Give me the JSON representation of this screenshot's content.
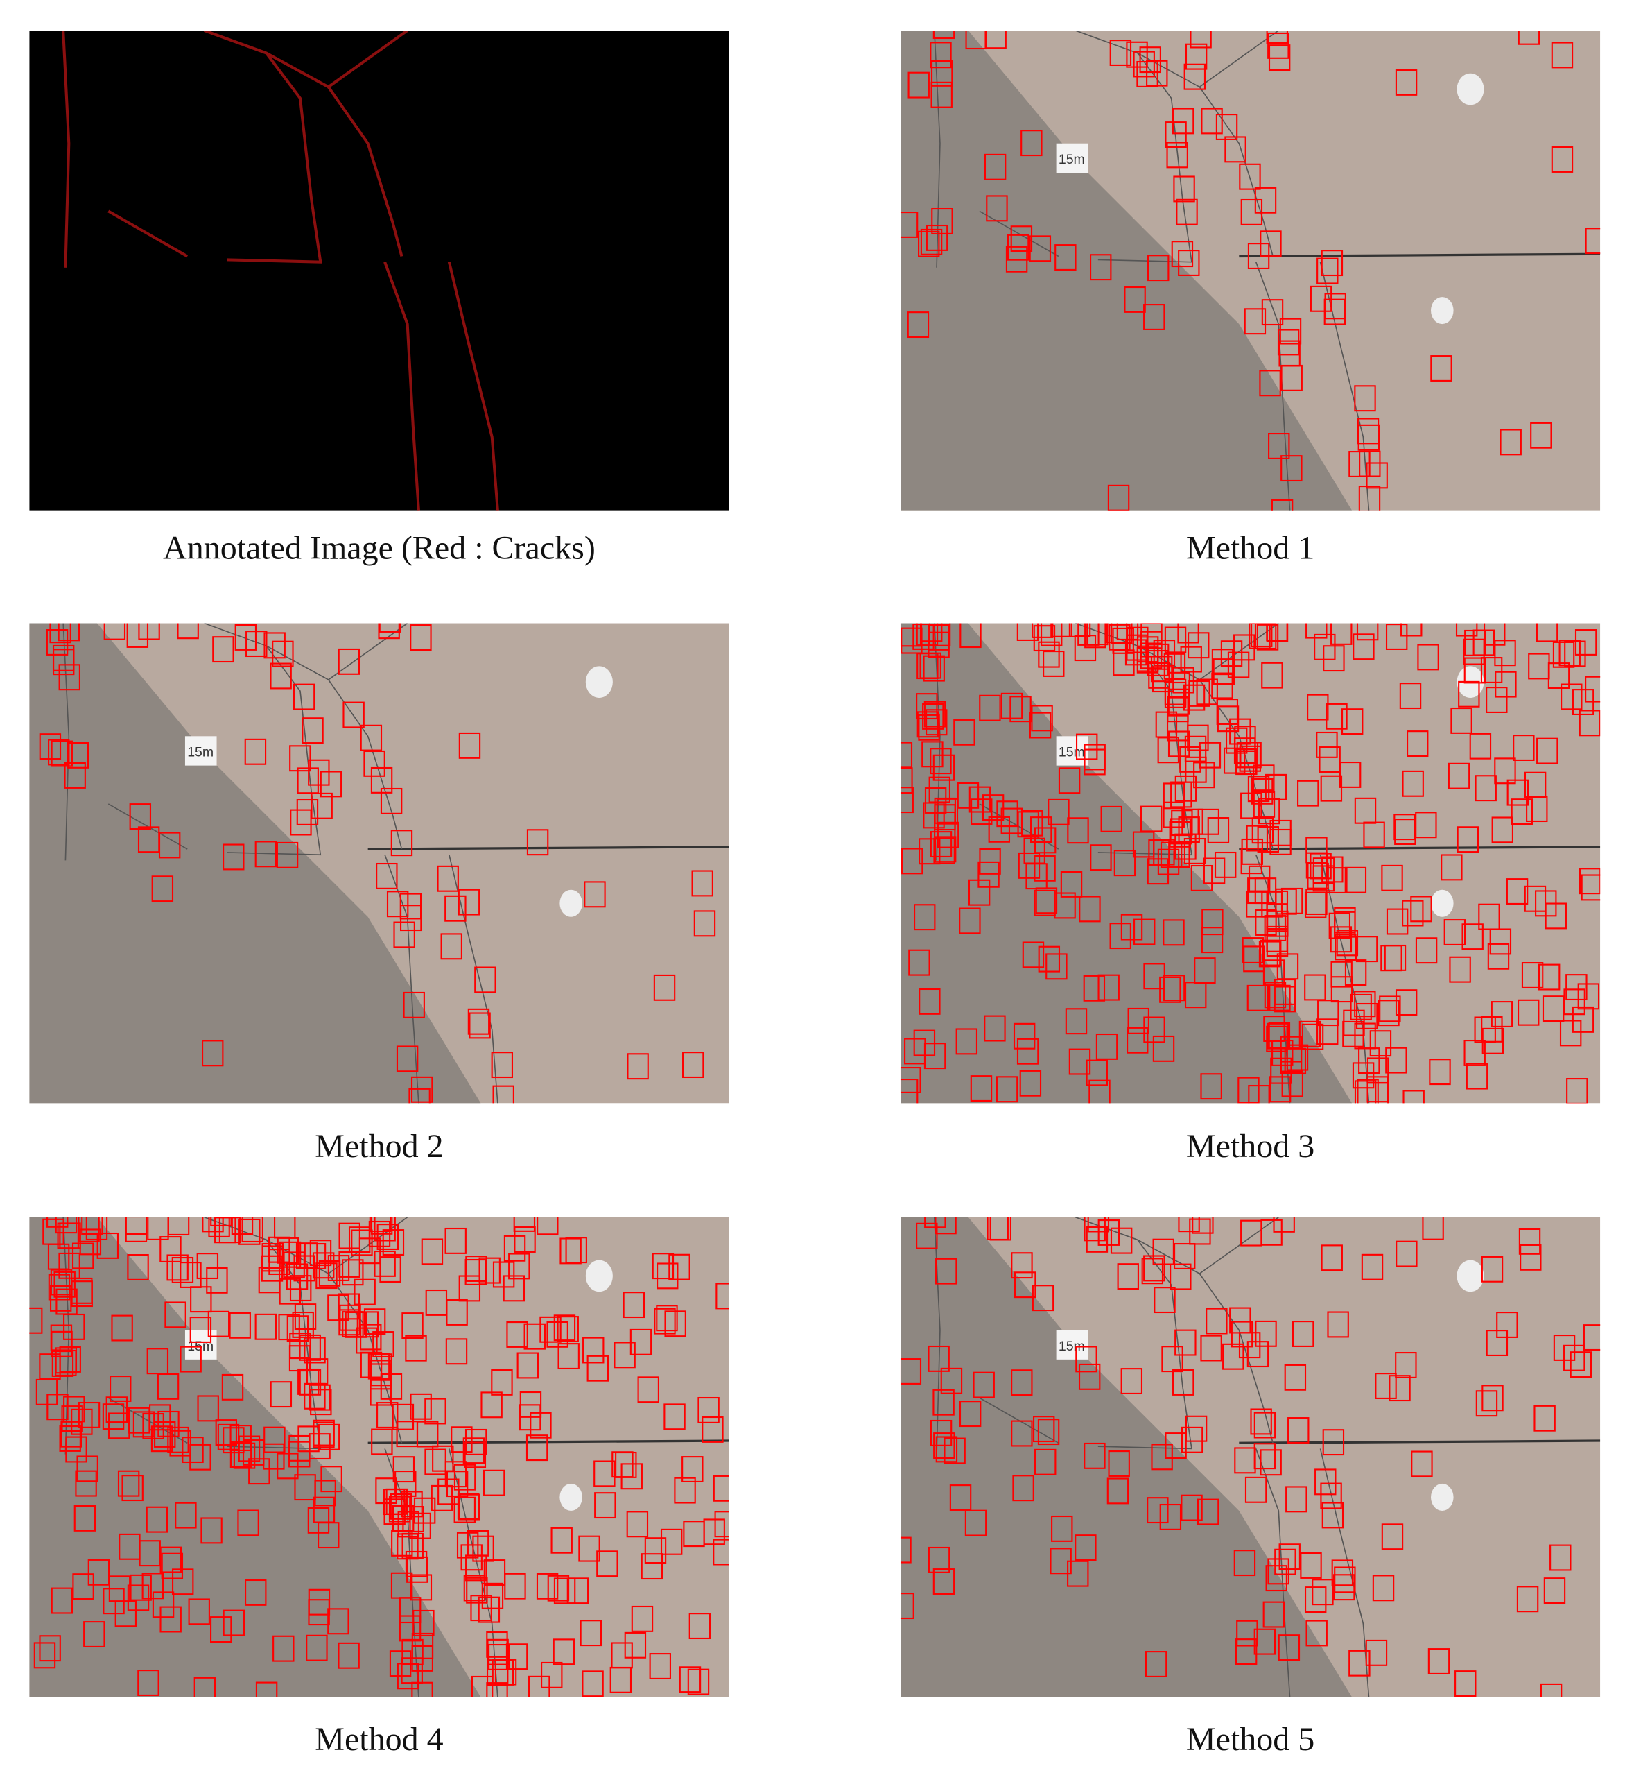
{
  "panels": [
    {
      "caption": "Annotated Image (Red : Cracks)"
    },
    {
      "caption": "Method 1",
      "sign": "15m"
    },
    {
      "caption": "Method 2",
      "sign": "15m"
    },
    {
      "caption": "Method 3",
      "sign": "15m"
    },
    {
      "caption": "Method 4",
      "sign": "15m"
    },
    {
      "caption": "Method 5",
      "sign": "15m"
    }
  ]
}
